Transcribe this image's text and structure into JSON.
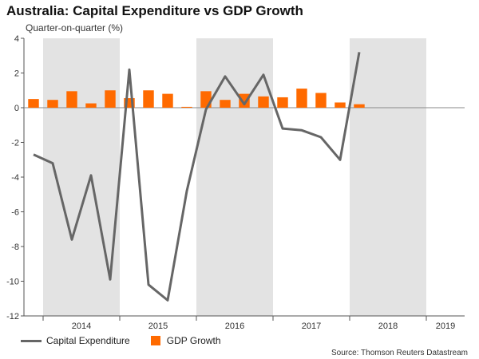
{
  "chart_data": {
    "type": "bar+line",
    "title": "Australia: Capital Expenditure vs GDP Growth",
    "subtitle": "Quarter-on-quarter (%)",
    "ylim": [
      -12,
      4
    ],
    "yticks": [
      4,
      2,
      0,
      -2,
      -4,
      -6,
      -8,
      -10,
      -12
    ],
    "quarters": [
      "2013 Q4",
      "2014 Q1",
      "2014 Q2",
      "2014 Q3",
      "2014 Q4",
      "2015 Q1",
      "2015 Q2",
      "2015 Q3",
      "2015 Q4",
      "2016 Q1",
      "2016 Q2",
      "2016 Q3",
      "2016 Q4",
      "2017 Q1",
      "2017 Q2",
      "2017 Q3",
      "2017 Q4",
      "2018 Q1",
      "2018 Q2",
      "2018 Q3",
      "2018 Q4",
      "2019 Q1",
      "2019 Q2"
    ],
    "year_labels": [
      {
        "label": "2014",
        "start": 1,
        "end": 5
      },
      {
        "label": "2015",
        "start": 5,
        "end": 9
      },
      {
        "label": "2016",
        "start": 9,
        "end": 13
      },
      {
        "label": "2017",
        "start": 13,
        "end": 17
      },
      {
        "label": "2018",
        "start": 17,
        "end": 21
      },
      {
        "label": "2019",
        "start": 21,
        "end": 23
      }
    ],
    "shaded_years": [
      "2014",
      "2016",
      "2018"
    ],
    "series": [
      {
        "name": "Capital Expenditure",
        "kind": "line",
        "color": "#666666",
        "values": [
          -2.7,
          -3.2,
          -7.6,
          -3.9,
          -9.9,
          2.2,
          -10.2,
          -11.1,
          -4.8,
          -0.1,
          1.8,
          0.2,
          1.9,
          -1.2,
          -1.3,
          -1.7,
          -3.0,
          3.2,
          null,
          null,
          null,
          null,
          null
        ]
      },
      {
        "name": "GDP Growth",
        "kind": "bar",
        "color": "#ff6a00",
        "values": [
          0.5,
          0.45,
          0.95,
          0.25,
          1.0,
          0.55,
          1.0,
          0.8,
          0.05,
          0.95,
          0.45,
          0.8,
          0.65,
          0.6,
          1.1,
          0.85,
          0.3,
          0.2,
          null,
          null,
          null,
          null,
          null
        ]
      }
    ],
    "source": "Source: Thomson Reuters Datastream"
  }
}
